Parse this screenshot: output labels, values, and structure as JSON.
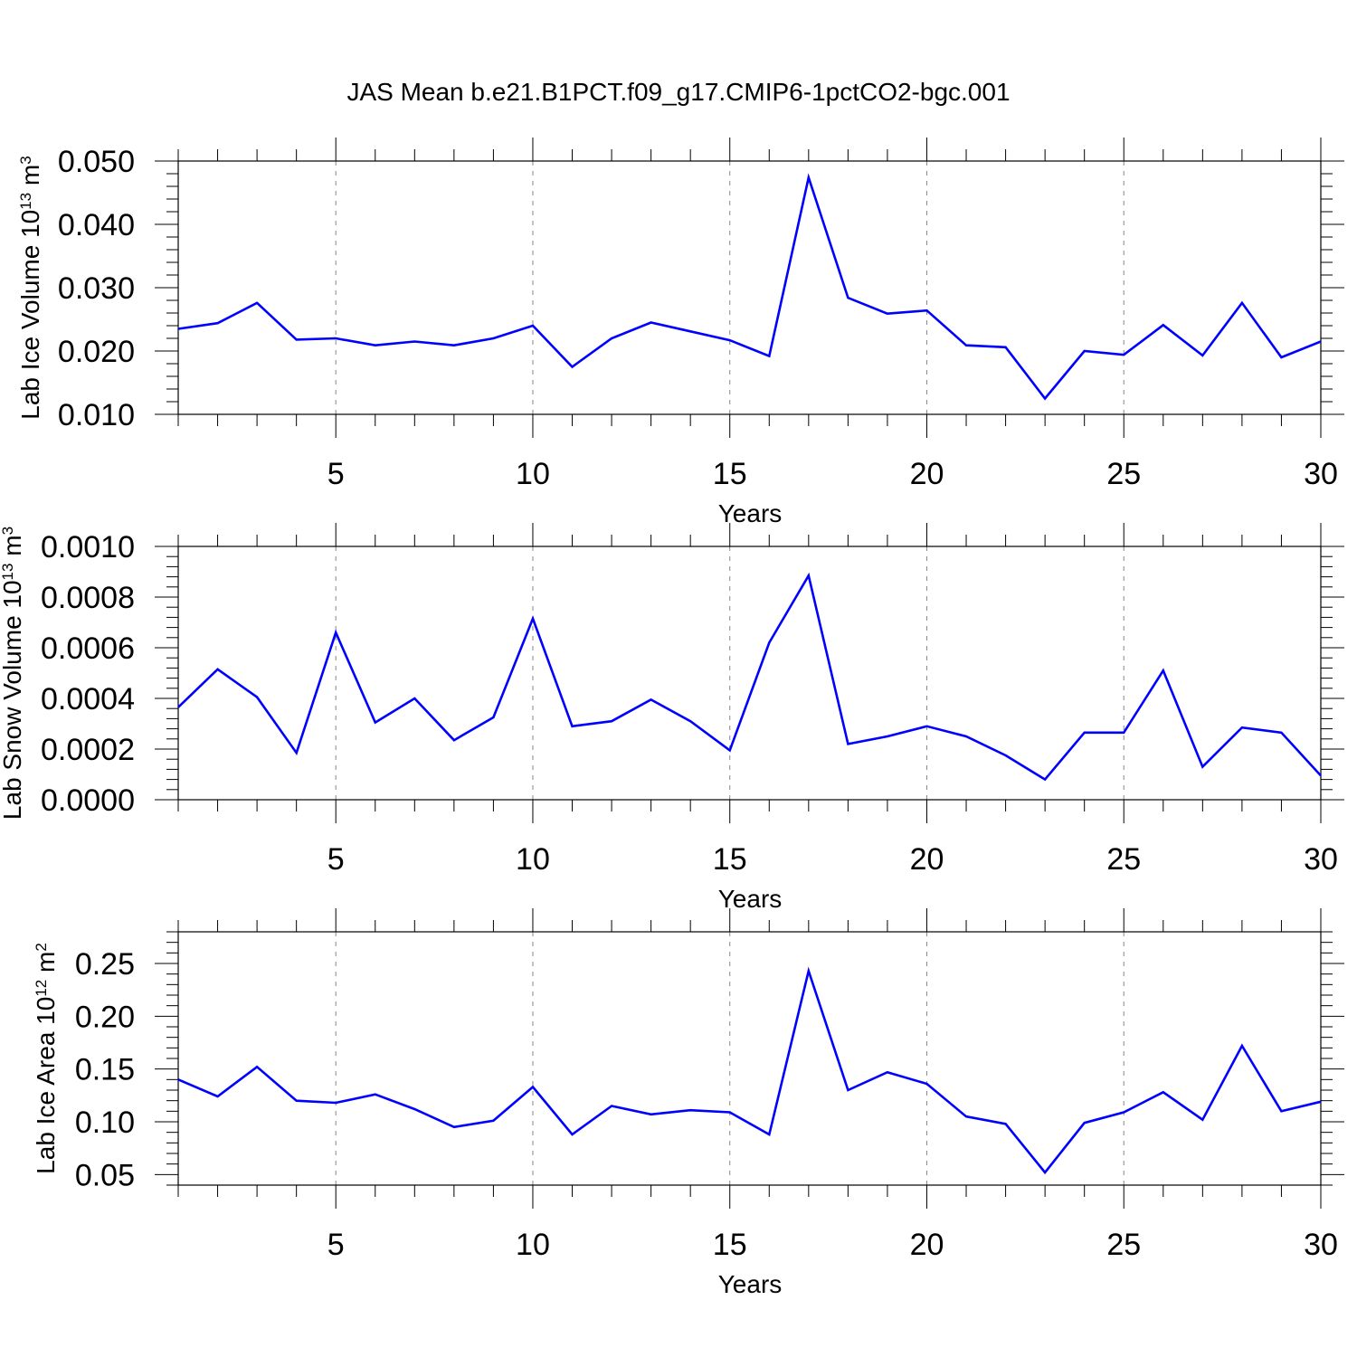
{
  "title": "JAS Mean b.e21.B1PCT.f09_g17.CMIP6-1pctCO2-bgc.001",
  "colors": {
    "series": "#0000ff",
    "axes": "#000000",
    "grid": "#888888"
  },
  "chart_data": [
    {
      "type": "line",
      "xlabel": "Years",
      "ylabel_text": "Lab Ice Volume 10",
      "ylabel_exp": "13",
      "ylabel_unit": " m",
      "ylabel_unit_exp": "3",
      "xlim": [
        1,
        30
      ],
      "ylim": [
        0.01,
        0.05
      ],
      "xticks": [
        5,
        10,
        15,
        20,
        25,
        30
      ],
      "yticks": [
        0.01,
        0.02,
        0.03,
        0.04,
        0.05
      ],
      "ytick_labels": [
        "0.010",
        "0.020",
        "0.030",
        "0.040",
        "0.050"
      ],
      "x": [
        1,
        2,
        3,
        4,
        5,
        6,
        7,
        8,
        9,
        10,
        11,
        12,
        13,
        14,
        15,
        16,
        17,
        18,
        19,
        20,
        21,
        22,
        23,
        24,
        25,
        26,
        27,
        28,
        29,
        30
      ],
      "values": [
        0.0235,
        0.0244,
        0.0276,
        0.0218,
        0.022,
        0.0209,
        0.0215,
        0.0209,
        0.022,
        0.024,
        0.0175,
        0.022,
        0.0245,
        0.0231,
        0.0217,
        0.0192,
        0.0474,
        0.0284,
        0.0259,
        0.0264,
        0.0209,
        0.0206,
        0.0125,
        0.02,
        0.0194,
        0.0241,
        0.0193,
        0.0276,
        0.019,
        0.0215
      ],
      "grid": "dashed vertical at major x ticks"
    },
    {
      "type": "line",
      "xlabel": "Years",
      "ylabel_text": "Lab Snow Volume 10",
      "ylabel_exp": "13",
      "ylabel_unit": " m",
      "ylabel_unit_exp": "3",
      "xlim": [
        1,
        30
      ],
      "ylim": [
        0,
        0.001
      ],
      "xticks": [
        5,
        10,
        15,
        20,
        25,
        30
      ],
      "yticks": [
        0,
        0.0002,
        0.0004,
        0.0006,
        0.0008,
        0.001
      ],
      "ytick_labels": [
        "0.0000",
        "0.0002",
        "0.0004",
        "0.0006",
        "0.0008",
        "0.0010"
      ],
      "x": [
        1,
        2,
        3,
        4,
        5,
        6,
        7,
        8,
        9,
        10,
        11,
        12,
        13,
        14,
        15,
        16,
        17,
        18,
        19,
        20,
        21,
        22,
        23,
        24,
        25,
        26,
        27,
        28,
        29,
        30
      ],
      "values": [
        0.000365,
        0.000515,
        0.000405,
        0.000185,
        0.00066,
        0.000305,
        0.0004,
        0.000235,
        0.000325,
        0.000715,
        0.00029,
        0.00031,
        0.000395,
        0.00031,
        0.000195,
        0.00062,
        0.000885,
        0.00022,
        0.00025,
        0.00029,
        0.00025,
        0.000175,
        8e-05,
        0.000265,
        0.000265,
        0.00051,
        0.00013,
        0.000285,
        0.000265,
        9.5e-05
      ],
      "grid": "dashed vertical at major x ticks"
    },
    {
      "type": "line",
      "xlabel": "Years",
      "ylabel_text": "Lab Ice Area 10",
      "ylabel_exp": "12",
      "ylabel_unit": " m",
      "ylabel_unit_exp": "2",
      "xlim": [
        1,
        30
      ],
      "ylim": [
        0.04,
        0.28
      ],
      "xticks": [
        5,
        10,
        15,
        20,
        25,
        30
      ],
      "yticks": [
        0.05,
        0.1,
        0.15,
        0.2,
        0.25
      ],
      "ytick_labels": [
        "0.05",
        "0.10",
        "0.15",
        "0.20",
        "0.25"
      ],
      "x": [
        1,
        2,
        3,
        4,
        5,
        6,
        7,
        8,
        9,
        10,
        11,
        12,
        13,
        14,
        15,
        16,
        17,
        18,
        19,
        20,
        21,
        22,
        23,
        24,
        25,
        26,
        27,
        28,
        29,
        30
      ],
      "values": [
        0.14,
        0.124,
        0.152,
        0.12,
        0.118,
        0.126,
        0.112,
        0.095,
        0.101,
        0.133,
        0.088,
        0.115,
        0.107,
        0.111,
        0.109,
        0.088,
        0.243,
        0.13,
        0.147,
        0.136,
        0.105,
        0.098,
        0.052,
        0.099,
        0.109,
        0.128,
        0.102,
        0.172,
        0.11,
        0.119
      ],
      "grid": "dashed vertical at major x ticks"
    }
  ]
}
